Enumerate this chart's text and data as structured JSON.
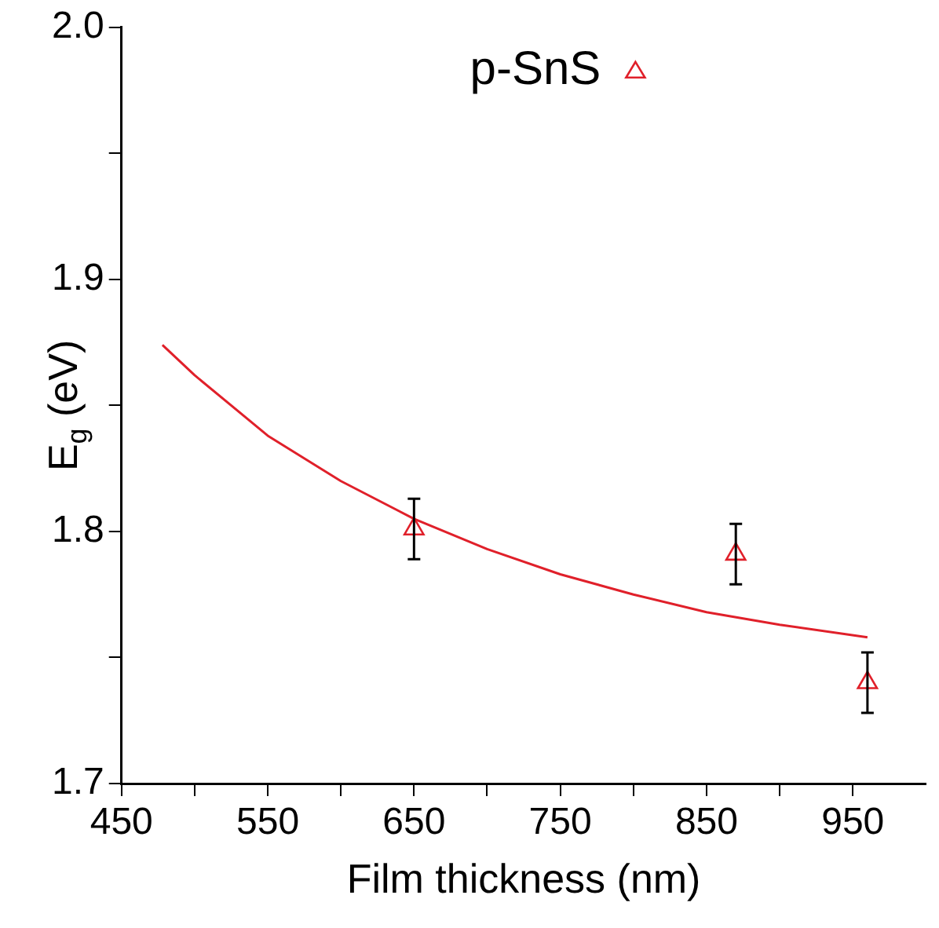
{
  "chart_data": {
    "type": "scatter",
    "xlabel": "Film thickness (nm)",
    "ylabel": "E$_{g}$ (eV)",
    "xlim": [
      450,
      1000
    ],
    "xticks": [
      450,
      {
        "value": 500,
        "label": null
      },
      550,
      {
        "value": 600,
        "label": null
      },
      650,
      {
        "value": 700,
        "label": null
      },
      750,
      {
        "value": 800,
        "label": null
      },
      850,
      {
        "value": 900,
        "label": null
      },
      950
    ],
    "ylim": [
      1.7,
      2.0
    ],
    "yticks": [
      1.7,
      {
        "value": 1.75,
        "label": null
      },
      1.8,
      {
        "value": 1.85,
        "label": null
      },
      1.9,
      {
        "value": 1.95,
        "label": null
      },
      {
        "value": 2.0,
        "label": "2.0"
      }
    ],
    "marker": "triangle",
    "legend": "top right",
    "grid": false,
    "series": [
      {
        "name": "p-SnS",
        "color": "#e0202a",
        "x": [
          650,
          870,
          960
        ],
        "values": [
          1.801,
          1.791,
          1.74
        ],
        "errors": [
          0.012,
          0.012,
          0.012
        ]
      },
      {
        "type": "line",
        "marker": "none",
        "color": "#e0202a",
        "x": [
          478,
          500,
          550,
          600,
          650,
          700,
          750,
          800,
          850,
          900,
          960
        ],
        "values": [
          1.874,
          1.862,
          1.838,
          1.82,
          1.805,
          1.793,
          1.783,
          1.775,
          1.768,
          1.763,
          1.758
        ]
      }
    ]
  }
}
